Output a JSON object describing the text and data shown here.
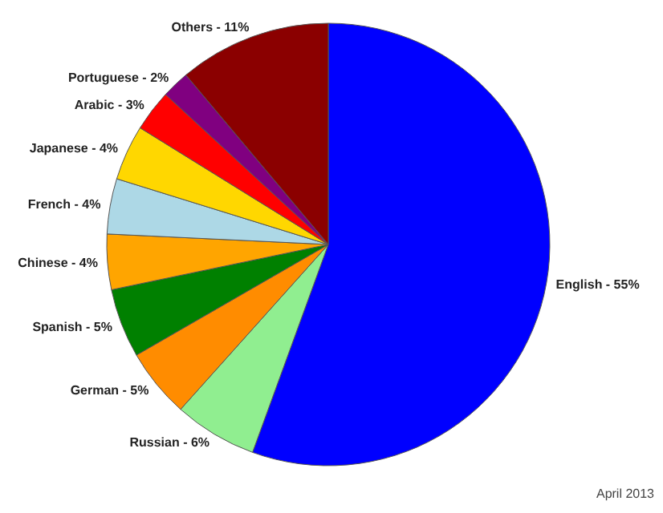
{
  "chart_data": {
    "type": "pie",
    "categories": [
      "English",
      "Russian",
      "German",
      "Spanish",
      "Chinese",
      "French",
      "Japanese",
      "Arabic",
      "Portuguese",
      "Others"
    ],
    "values": [
      55,
      6,
      5,
      5,
      4,
      4,
      4,
      3,
      2,
      11
    ],
    "colors": [
      "#0000ff",
      "#90ee90",
      "#ff8c00",
      "#008000",
      "#ffa500",
      "#add8e6",
      "#ffd700",
      "#ff0000",
      "#800080",
      "#8b0000"
    ],
    "value_labels": [
      "55%",
      "6%",
      "5%",
      "5%",
      "4%",
      "4%",
      "4%",
      "3%",
      "2%",
      "11%"
    ],
    "annotations": [
      "April 2013"
    ]
  }
}
